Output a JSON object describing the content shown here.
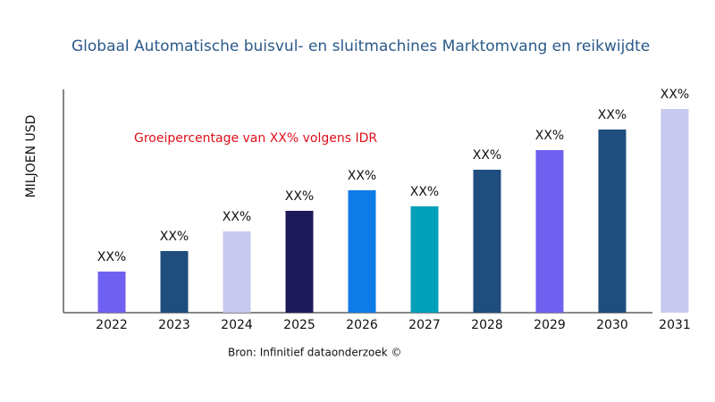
{
  "chart_data": {
    "type": "bar",
    "title": "Globaal Automatische buisvul- en sluitmachines Marktomvang en reikwijdte",
    "y_label": "MILJOEN USD",
    "annotation": "Groeipercentage van XX% volgens IDR",
    "source": "Bron: Infinitief dataonderzoek ©",
    "categories": [
      "2022",
      "2023",
      "2024",
      "2025",
      "2026",
      "2027",
      "2028",
      "2029",
      "2030",
      "2031"
    ],
    "values": [
      46,
      69,
      91,
      114,
      137,
      119,
      160,
      182,
      205,
      228
    ],
    "value_labels": [
      "XX%",
      "XX%",
      "XX%",
      "XX%",
      "XX%",
      "XX%",
      "XX%",
      "XX%",
      "XX%",
      "XX%"
    ],
    "colors": [
      "#7060f0",
      "#1f4e7e",
      "#c8c8f0",
      "#1e1a5a",
      "#0e7be6",
      "#00a0b8",
      "#1f4e7e",
      "#7060f0",
      "#1f4e7e",
      "#c8c8f0"
    ],
    "ylim": [
      0,
      250
    ]
  }
}
